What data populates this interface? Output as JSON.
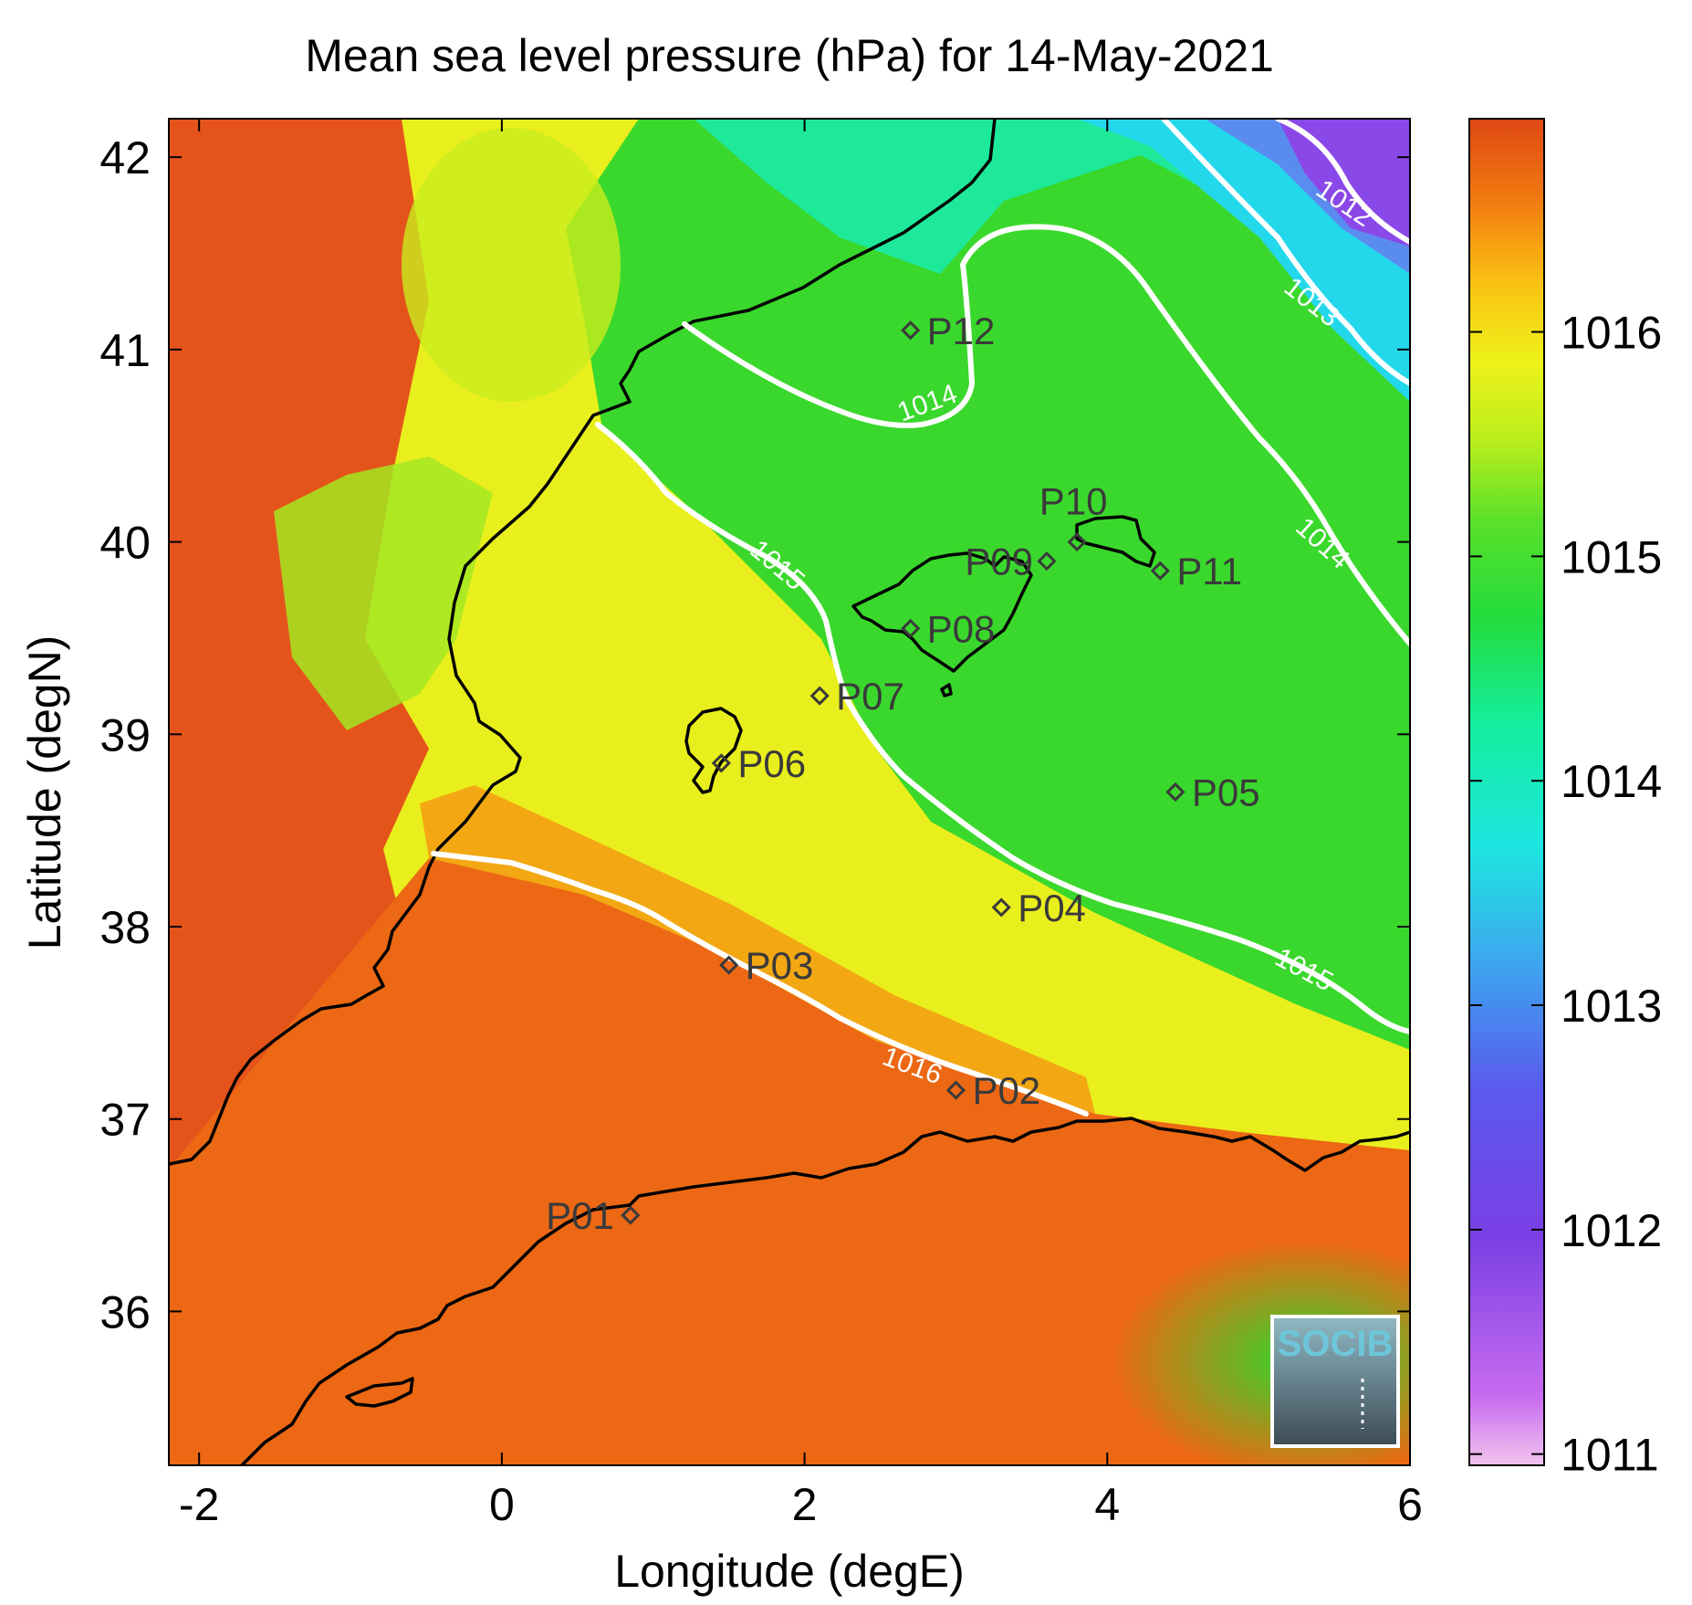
{
  "title": "Mean sea level pressure (hPa) for 14-May-2021",
  "chart_data": {
    "type": "heatmap",
    "variable": "Mean sea level pressure",
    "unit": "hPa",
    "date": "14-May-2021",
    "xlabel": "Longitude (degE)",
    "ylabel": "Latitude (degN)",
    "xlim": [
      -2.2,
      6.0
    ],
    "ylim": [
      35.2,
      42.2
    ],
    "xticks": [
      -2,
      0,
      2,
      4,
      6
    ],
    "yticks": [
      36,
      37,
      38,
      39,
      40,
      41,
      42
    ],
    "colorbar": {
      "ticks": [
        1011,
        1012,
        1013,
        1014,
        1015,
        1016
      ],
      "range": [
        1010.95,
        1016.95
      ],
      "colormap": [
        "#f2c4ee",
        "#b43ff0",
        "#6a3ee0",
        "#3f86f2",
        "#1bd6e8",
        "#12ec9a",
        "#2ed82a",
        "#a2ec1e",
        "#eef21a",
        "#f8b411",
        "#f06b0e",
        "#df4a14"
      ]
    },
    "contours": [
      {
        "level": 1012,
        "label": "1012"
      },
      {
        "level": 1013,
        "label": "1013"
      },
      {
        "level": 1014,
        "label": "1014"
      },
      {
        "level": 1015,
        "label": "1015"
      },
      {
        "level": 1016,
        "label": "1016"
      }
    ],
    "points": [
      {
        "name": "P01",
        "lon": 0.85,
        "lat": 36.5
      },
      {
        "name": "P02",
        "lon": 3.0,
        "lat": 37.15
      },
      {
        "name": "P03",
        "lon": 1.5,
        "lat": 37.8
      },
      {
        "name": "P04",
        "lon": 3.3,
        "lat": 38.1
      },
      {
        "name": "P05",
        "lon": 4.45,
        "lat": 38.7
      },
      {
        "name": "P06",
        "lon": 1.45,
        "lat": 38.85
      },
      {
        "name": "P07",
        "lon": 2.1,
        "lat": 39.2
      },
      {
        "name": "P08",
        "lon": 2.7,
        "lat": 39.55
      },
      {
        "name": "P09",
        "lon": 3.6,
        "lat": 39.9
      },
      {
        "name": "P10",
        "lon": 3.8,
        "lat": 40.0
      },
      {
        "name": "P11",
        "lon": 4.35,
        "lat": 39.85
      },
      {
        "name": "P12",
        "lon": 2.7,
        "lat": 41.1
      }
    ]
  },
  "logo": {
    "text": "SOCIB"
  }
}
